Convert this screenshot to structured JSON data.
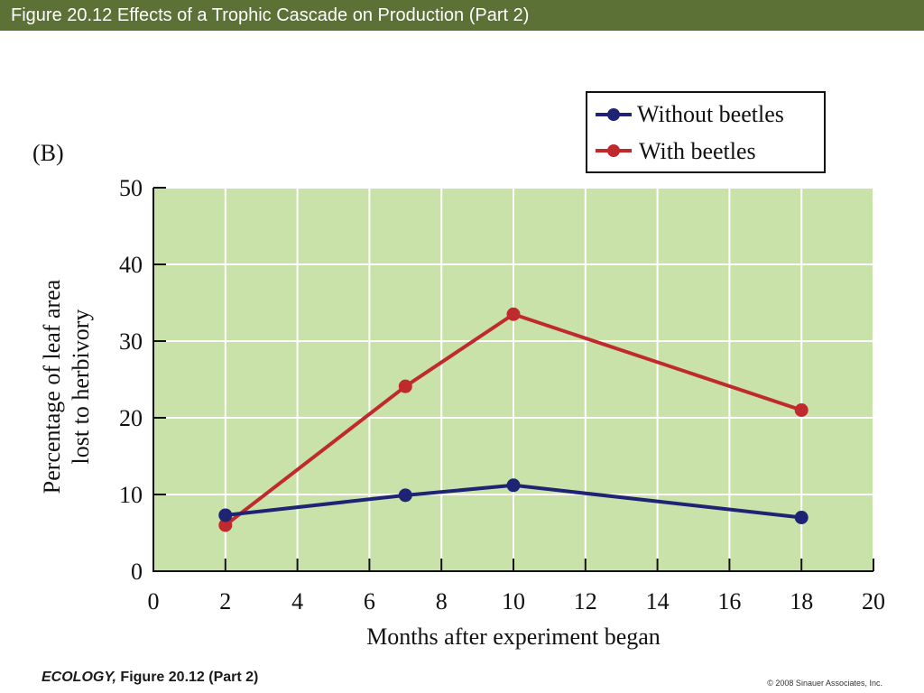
{
  "header": {
    "title": "Figure 20.12  Effects of a Trophic Cascade on Production (Part 2)"
  },
  "panel_label": "(B)",
  "footer": {
    "book": "ECOLOGY,",
    "figure": " Figure 20.12 (Part 2)",
    "copyright": "© 2008 Sinauer Associates, Inc."
  },
  "colors": {
    "header_bg": "#5c7135",
    "plot_bg": "#c9e2aa",
    "without_beetles": "#1e2473",
    "with_beetles": "#bf2a2f"
  },
  "chart_data": {
    "type": "line",
    "xlabel": "Months after experiment began",
    "ylabel": "Percentage of leaf area lost to herbivory",
    "ylabel_lines": [
      "Percentage of leaf area",
      "lost to herbivory"
    ],
    "xlim": [
      0,
      20
    ],
    "ylim": [
      0,
      50
    ],
    "xticks": [
      0,
      2,
      4,
      6,
      8,
      10,
      12,
      14,
      16,
      18,
      20
    ],
    "yticks": [
      0,
      10,
      20,
      30,
      40,
      50
    ],
    "grid": true,
    "legend_position": "top-right",
    "x": [
      2,
      7,
      10,
      18
    ],
    "series": [
      {
        "name": "Without beetles",
        "values": [
          7.3,
          9.9,
          11.2,
          7.0
        ]
      },
      {
        "name": "With beetles",
        "values": [
          6.0,
          24.1,
          33.5,
          21.0
        ]
      }
    ]
  }
}
